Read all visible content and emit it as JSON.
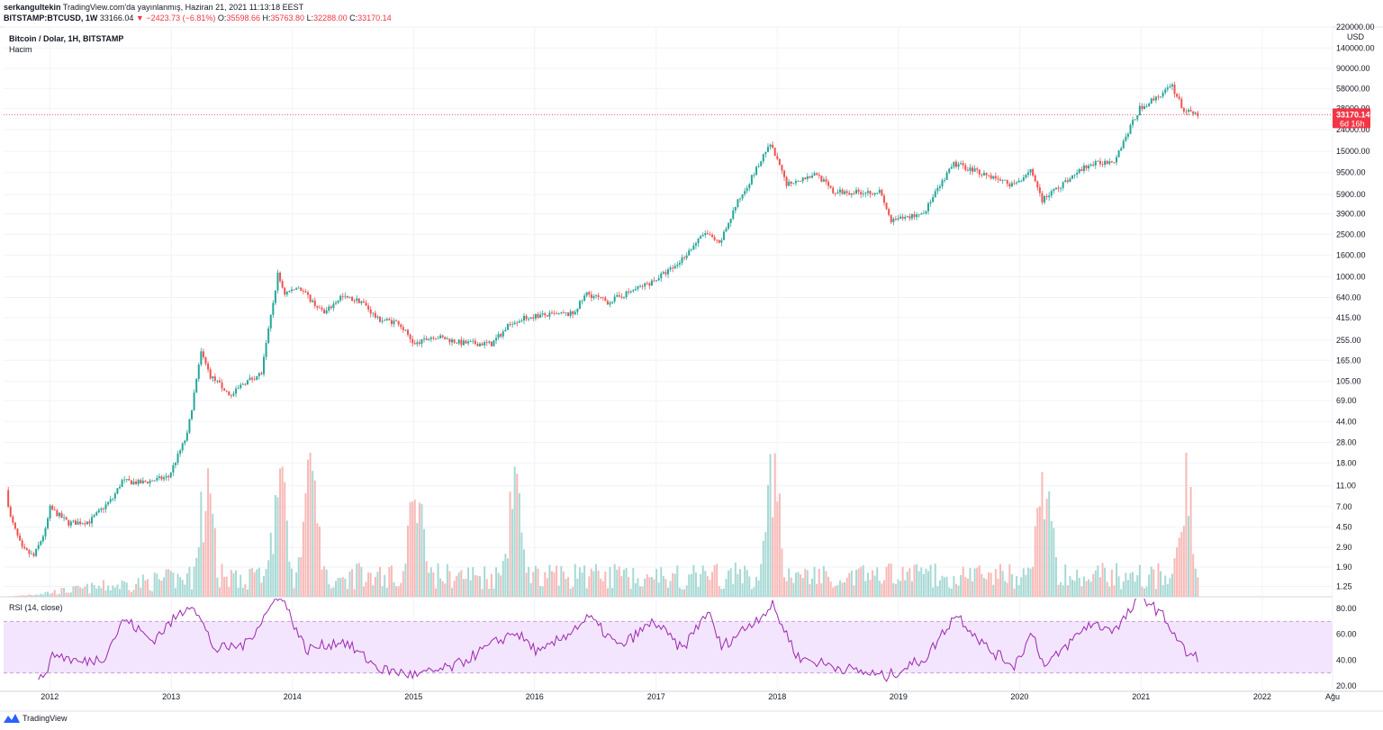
{
  "header": {
    "publisher": "serkangultekin",
    "published_text": "TradingView.com'da yayınlanmış, Haziran 21, 2021 11:13:18 EEST",
    "symbol": "BITSTAMP:BTCUSD, 1W",
    "last": "33166.04",
    "change": "−2423.73 (−6.81%)",
    "o_label": "O:",
    "o_val": "35598.66",
    "h_label": "H:",
    "h_val": "35763.80",
    "l_label": "L:",
    "l_val": "32288.00",
    "c_label": "C:",
    "c_val": "33170.14"
  },
  "legend": {
    "title": "Bitcoin / Dolar, 1H, BITSTAMP",
    "volume": "Hacim",
    "rsi": "RSI (14, close)"
  },
  "price_axis": {
    "unit": "USD",
    "ticks": [
      "220000.00",
      "140000.00",
      "90000.00",
      "58000.00",
      "38000.00",
      "24000.00",
      "15000.00",
      "9500.00",
      "5900.00",
      "3900.00",
      "2500.00",
      "1600.00",
      "1000.00",
      "640.00",
      "415.00",
      "255.00",
      "165.00",
      "105.00",
      "69.00",
      "44.00",
      "28.00",
      "18.00",
      "11.00",
      "7.00",
      "4.50",
      "2.90",
      "1.90",
      "1.25"
    ],
    "last_price": "33170.14",
    "countdown": "6d 16h"
  },
  "rsi_axis": {
    "ticks": [
      "80.00",
      "60.00",
      "40.00",
      "20.00"
    ]
  },
  "time_axis": {
    "labels": [
      "2012",
      "2013",
      "2014",
      "2015",
      "2016",
      "2017",
      "2018",
      "2019",
      "2020",
      "2021",
      "2022",
      "Ağu"
    ]
  },
  "footer": {
    "brand": "TradingView"
  },
  "colors": {
    "up": "#26a69a",
    "down": "#ef5350",
    "rsi": "#9c27b0",
    "rsi_band": "#f3e5fd",
    "vol_up": "#a7d9d4",
    "vol_down": "#f7b9b7",
    "last_price": "#f23645",
    "grid": "#f0f3fa"
  },
  "chart_data": {
    "type": "candlestick",
    "title": "Bitcoin / Dolar, 1H, BITSTAMP",
    "scale": "log",
    "ylim": [
      1.0,
      220000
    ],
    "x_range": [
      "2011-08-15",
      "2022-08-01"
    ],
    "last_price": 33170.14,
    "price_path": [
      [
        "2011-08-29",
        10
      ],
      [
        "2011-09-12",
        5.5
      ],
      [
        "2011-10-17",
        2.8
      ],
      [
        "2011-11-21",
        2.4
      ],
      [
        "2011-12-26",
        4.2
      ],
      [
        "2012-01-09",
        6.8
      ],
      [
        "2012-03-05",
        4.9
      ],
      [
        "2012-05-07",
        5.1
      ],
      [
        "2012-07-16",
        8.4
      ],
      [
        "2012-08-13",
        12.2
      ],
      [
        "2012-10-08",
        11.7
      ],
      [
        "2012-12-31",
        13.3
      ],
      [
        "2013-02-25",
        33
      ],
      [
        "2013-04-08",
        195
      ],
      [
        "2013-05-06",
        118
      ],
      [
        "2013-07-08",
        76
      ],
      [
        "2013-08-12",
        100
      ],
      [
        "2013-10-07",
        125
      ],
      [
        "2013-11-25",
        1050
      ],
      [
        "2013-12-16",
        700
      ],
      [
        "2014-01-27",
        800
      ],
      [
        "2014-04-14",
        450
      ],
      [
        "2014-06-02",
        650
      ],
      [
        "2014-08-04",
        590
      ],
      [
        "2014-09-22",
        400
      ],
      [
        "2014-11-24",
        375
      ],
      [
        "2015-01-12",
        230
      ],
      [
        "2015-03-09",
        280
      ],
      [
        "2015-06-01",
        240
      ],
      [
        "2015-08-31",
        235
      ],
      [
        "2015-11-02",
        380
      ],
      [
        "2016-01-04",
        430
      ],
      [
        "2016-05-02",
        450
      ],
      [
        "2016-06-13",
        700
      ],
      [
        "2016-08-15",
        580
      ],
      [
        "2016-12-26",
        900
      ],
      [
        "2017-03-06",
        1250
      ],
      [
        "2017-06-05",
        2600
      ],
      [
        "2017-07-17",
        2000
      ],
      [
        "2017-09-04",
        4600
      ],
      [
        "2017-12-18",
        17500
      ],
      [
        "2018-02-05",
        7500
      ],
      [
        "2018-05-07",
        9300
      ],
      [
        "2018-06-25",
        6200
      ],
      [
        "2018-11-12",
        6300
      ],
      [
        "2018-12-17",
        3300
      ],
      [
        "2019-03-25",
        4000
      ],
      [
        "2019-06-24",
        11500
      ],
      [
        "2019-08-26",
        10000
      ],
      [
        "2019-12-23",
        7200
      ],
      [
        "2020-02-10",
        10300
      ],
      [
        "2020-03-16",
        5300
      ],
      [
        "2020-07-27",
        11000
      ],
      [
        "2020-10-19",
        12500
      ],
      [
        "2021-01-04",
        38000
      ],
      [
        "2021-04-12",
        61000
      ],
      [
        "2021-05-17",
        36000
      ],
      [
        "2021-06-21",
        33170
      ]
    ],
    "volume": {
      "unit": "relative",
      "peak_dates": [
        "2013-04-15",
        "2013-11-25",
        "2014-02-24",
        "2015-01-12",
        "2015-11-02",
        "2017-12-18",
        "2020-03-16",
        "2021-05-17"
      ]
    },
    "rsi": {
      "label": "RSI (14, close)",
      "ylim": [
        20,
        80
      ],
      "bands": [
        30,
        70
      ],
      "points": [
        [
          "2011-11-28",
          22
        ],
        [
          "2012-01-16",
          45
        ],
        [
          "2012-04-02",
          38
        ],
        [
          "2012-06-11",
          42
        ],
        [
          "2012-08-13",
          72
        ],
        [
          "2012-11-05",
          55
        ],
        [
          "2013-03-04",
          85
        ],
        [
          "2013-05-13",
          48
        ],
        [
          "2013-08-12",
          52
        ],
        [
          "2013-11-25",
          92
        ],
        [
          "2014-02-10",
          48
        ],
        [
          "2014-06-02",
          55
        ],
        [
          "2014-09-22",
          33
        ],
        [
          "2015-01-12",
          28
        ],
        [
          "2015-05-04",
          35
        ],
        [
          "2015-11-02",
          62
        ],
        [
          "2016-01-18",
          45
        ],
        [
          "2016-06-13",
          73
        ],
        [
          "2016-09-12",
          50
        ],
        [
          "2016-12-26",
          70
        ],
        [
          "2017-03-20",
          48
        ],
        [
          "2017-06-05",
          78
        ],
        [
          "2017-07-17",
          50
        ],
        [
          "2017-12-18",
          82
        ],
        [
          "2018-03-05",
          42
        ],
        [
          "2018-06-25",
          35
        ],
        [
          "2018-11-26",
          27
        ],
        [
          "2019-03-25",
          42
        ],
        [
          "2019-06-24",
          76
        ],
        [
          "2019-09-30",
          48
        ],
        [
          "2019-12-16",
          36
        ],
        [
          "2020-02-10",
          62
        ],
        [
          "2020-03-16",
          34
        ],
        [
          "2020-07-27",
          68
        ],
        [
          "2020-10-19",
          64
        ],
        [
          "2021-01-04",
          90
        ],
        [
          "2021-03-15",
          72
        ],
        [
          "2021-05-17",
          45
        ],
        [
          "2021-06-21",
          42
        ]
      ]
    }
  }
}
